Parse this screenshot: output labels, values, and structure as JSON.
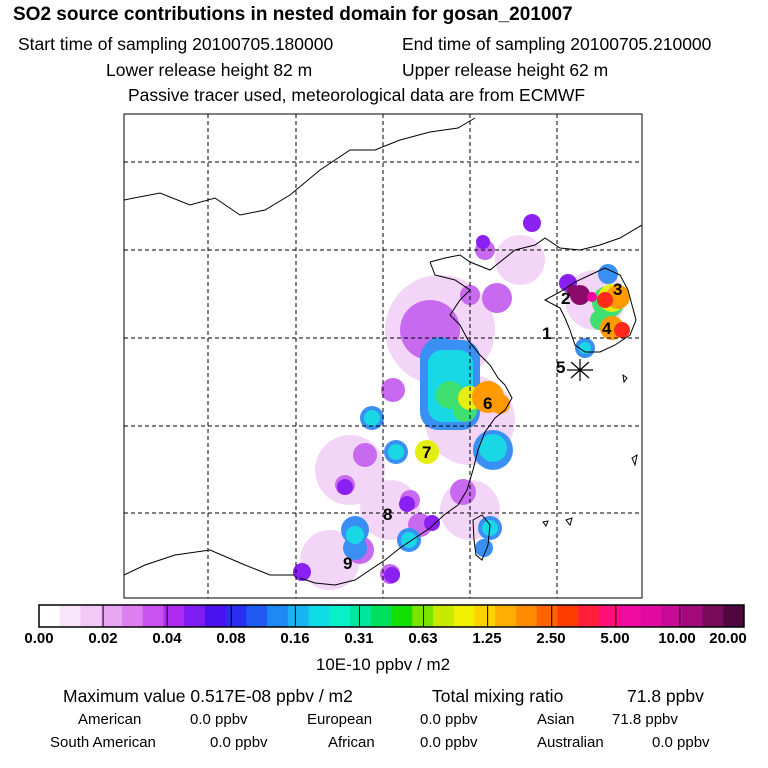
{
  "header": {
    "title": "SO2 source contributions in nested domain for gosan_201007",
    "start_time": "Start time of sampling 20100705.180000",
    "end_time": "End time of sampling 20100705.210000",
    "lower_release": "Lower release height   82 m",
    "upper_release": "Upper release height   62 m",
    "note": "Passive tracer used, meteorological data are from ECMWF"
  },
  "map": {
    "gridline_style": "dashed",
    "receptor_marker": "asterisk-icon",
    "source_labels": [
      "1",
      "2",
      "3",
      "4",
      "5",
      "6",
      "7",
      "8",
      "9"
    ]
  },
  "colorbar": {
    "tick_labels": [
      "0.00",
      "0.02",
      "0.04",
      "0.08",
      "0.16",
      "0.31",
      "0.63",
      "1.25",
      "2.50",
      "5.00",
      "10.00",
      "20.00"
    ],
    "colors": [
      "#ffffff",
      "#fae6fb",
      "#f2c8f7",
      "#e8a6f3",
      "#dc7ff0",
      "#c853ee",
      "#b02bf0",
      "#7d1cf3",
      "#4a12ee",
      "#2a2ef0",
      "#1f5af2",
      "#1e88f4",
      "#18b4f4",
      "#10dce8",
      "#08f0c8",
      "#00e69c",
      "#00e060",
      "#14e000",
      "#7ae400",
      "#c8ea00",
      "#f0f000",
      "#ffd200",
      "#ffae00",
      "#ff8c00",
      "#ff6400",
      "#ff3c00",
      "#ff1e3c",
      "#ff0f78",
      "#f00aa0",
      "#e00aa0",
      "#c80a96",
      "#a00a7a",
      "#780a5a",
      "#50083e"
    ],
    "units": "10E-10 ppbv / m2"
  },
  "stats": {
    "max_value": "Maximum value  0.517E-08 ppbv / m2",
    "total_mixing": "Total mixing ratio",
    "total_mixing_value": "71.8 ppbv",
    "regions": [
      {
        "name": "American",
        "value": "0.0 ppbv"
      },
      {
        "name": "European",
        "value": "0.0 ppbv"
      },
      {
        "name": "Asian",
        "value": "71.8 ppbv"
      },
      {
        "name": "South American",
        "value": "0.0 ppbv"
      },
      {
        "name": "African",
        "value": "0.0 ppbv"
      },
      {
        "name": "Australian",
        "value": "0.0 ppbv"
      }
    ]
  }
}
